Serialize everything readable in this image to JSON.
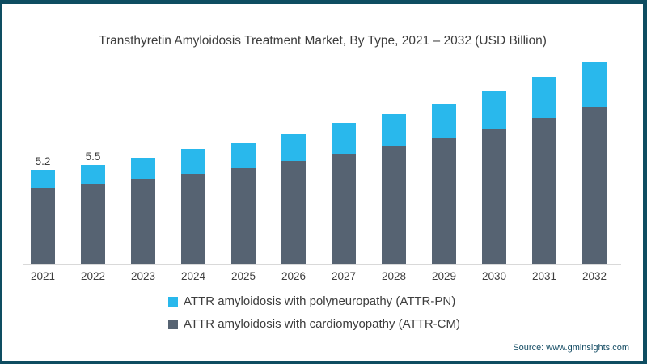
{
  "title": "Transthyretin Amyloidosis Treatment Market, By Type, 2021 – 2032 (USD Billion)",
  "source": "Source: www.gminsights.com",
  "frame": {
    "border_color": "#0e4d61",
    "background": "#ffffff"
  },
  "chart_data": {
    "type": "bar",
    "stacked": true,
    "title": "Transthyretin Amyloidosis Treatment Market, By Type, 2021 – 2032 (USD Billion)",
    "xlabel": "",
    "ylabel": "USD Billion",
    "ylim": [
      0,
      12
    ],
    "grid": false,
    "legend_position": "bottom",
    "categories": [
      "2021",
      "2022",
      "2023",
      "2024",
      "2025",
      "2026",
      "2027",
      "2028",
      "2029",
      "2030",
      "2031",
      "2032"
    ],
    "series": [
      {
        "name": "ATTR amyloidosis with cardiomyopathy (ATTR-CM)",
        "color": "#566372",
        "values": [
          4.2,
          4.4,
          4.7,
          5.0,
          5.3,
          5.7,
          6.1,
          6.5,
          7.0,
          7.5,
          8.1,
          8.7
        ]
      },
      {
        "name": "ATTR amyloidosis with polyneuropathy (ATTR-PN)",
        "color": "#29b8ec",
        "values": [
          1.0,
          1.1,
          1.2,
          1.4,
          1.4,
          1.5,
          1.7,
          1.8,
          1.9,
          2.1,
          2.3,
          2.5
        ]
      }
    ],
    "totals": [
      5.2,
      5.5,
      5.9,
      6.4,
      6.7,
      7.2,
      7.8,
      8.3,
      8.9,
      9.6,
      10.4,
      11.2
    ],
    "data_labels": [
      "5.2",
      "5.5",
      null,
      null,
      null,
      null,
      null,
      null,
      null,
      null,
      null,
      null
    ],
    "legend": [
      {
        "label": "ATTR amyloidosis with polyneuropathy (ATTR-PN)",
        "color": "#29b8ec"
      },
      {
        "label": "ATTR amyloidosis with cardiomyopathy (ATTR-CM)",
        "color": "#566372"
      }
    ]
  }
}
